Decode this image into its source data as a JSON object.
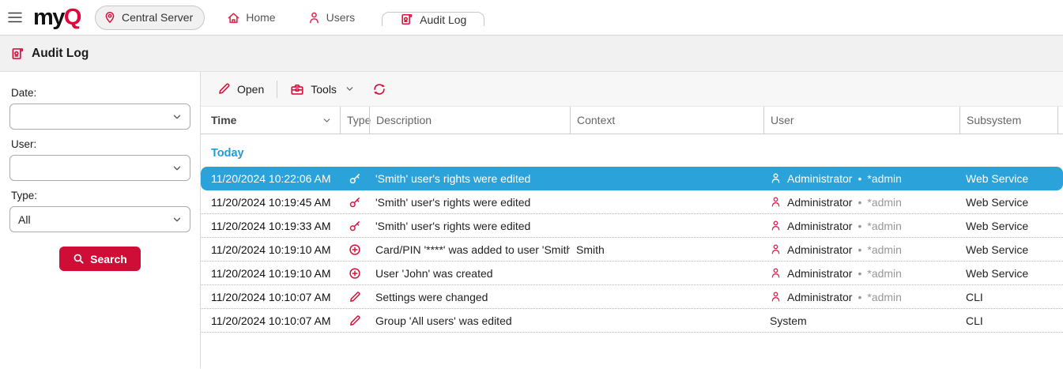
{
  "topbar": {
    "logo_my": "my",
    "logo_q": "Q",
    "server_label": "Central Server",
    "nav_home": "Home",
    "nav_users": "Users",
    "nav_audit_log": "Audit Log"
  },
  "page_header": {
    "title": "Audit Log"
  },
  "sidebar": {
    "filters": [
      {
        "label": "Date:",
        "value": ""
      },
      {
        "label": "User:",
        "value": ""
      },
      {
        "label": "Type:",
        "value": "All"
      }
    ],
    "search_label": "Search"
  },
  "toolbar": {
    "open_label": "Open",
    "tools_label": "Tools"
  },
  "table": {
    "columns": [
      "Time",
      "Type",
      "Description",
      "Context",
      "User",
      "Subsystem"
    ],
    "group_label": "Today",
    "rows": [
      {
        "selected": true,
        "time": "11/20/2024 10:22:06 AM",
        "type_icon": "key-icon",
        "description": "'Smith' user's rights were edited",
        "context": "",
        "user": "Administrator",
        "user_detail": "*admin",
        "user_icon": true,
        "subsystem": "Web Service"
      },
      {
        "selected": false,
        "time": "11/20/2024 10:19:45 AM",
        "type_icon": "key-icon",
        "description": "'Smith' user's rights were edited",
        "context": "",
        "user": "Administrator",
        "user_detail": "*admin",
        "user_icon": true,
        "subsystem": "Web Service"
      },
      {
        "selected": false,
        "time": "11/20/2024 10:19:33 AM",
        "type_icon": "key-icon",
        "description": "'Smith' user's rights were edited",
        "context": "",
        "user": "Administrator",
        "user_detail": "*admin",
        "user_icon": true,
        "subsystem": "Web Service"
      },
      {
        "selected": false,
        "time": "11/20/2024 10:19:10 AM",
        "type_icon": "plus-circle-icon",
        "description": "Card/PIN '****' was added to user 'Smith'",
        "context": "Smith",
        "user": "Administrator",
        "user_detail": "*admin",
        "user_icon": true,
        "subsystem": "Web Service"
      },
      {
        "selected": false,
        "time": "11/20/2024 10:19:10 AM",
        "type_icon": "plus-circle-icon",
        "description": "User 'John' was created",
        "context": "",
        "user": "Administrator",
        "user_detail": "*admin",
        "user_icon": true,
        "subsystem": "Web Service"
      },
      {
        "selected": false,
        "time": "11/20/2024 10:10:07 AM",
        "type_icon": "pencil-icon",
        "description": "Settings were changed",
        "context": "",
        "user": "Administrator",
        "user_detail": "*admin",
        "user_icon": true,
        "subsystem": "CLI"
      },
      {
        "selected": false,
        "time": "11/20/2024 10:10:07 AM",
        "type_icon": "pencil-icon",
        "description": "Group 'All users' was edited",
        "context": "",
        "user": "System",
        "user_detail": "",
        "user_icon": false,
        "subsystem": "CLI"
      }
    ]
  },
  "colors": {
    "brand_red": "#d8123c",
    "button_red": "#cf0e38",
    "selection_blue": "#2ba3da",
    "group_blue": "#1e9cd9"
  }
}
